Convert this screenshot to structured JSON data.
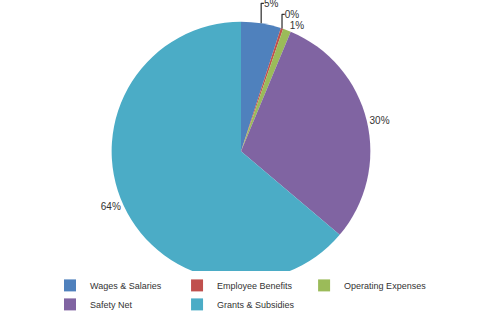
{
  "chart_data": {
    "type": "pie",
    "categories": [
      "Wages & Salaries",
      "Employee Benefits",
      "Operating Expenses",
      "Safety Net",
      "Grants & Subsidies"
    ],
    "values": [
      5,
      0.3,
      1,
      30,
      64
    ],
    "value_labels": [
      "5%",
      "0%",
      "1%",
      "30%",
      "64%"
    ],
    "colors": [
      "#4F81BD",
      "#C0504D",
      "#9BBB59",
      "#8064A2",
      "#4BACC6"
    ],
    "data_labels": true,
    "legend": "bottom"
  }
}
